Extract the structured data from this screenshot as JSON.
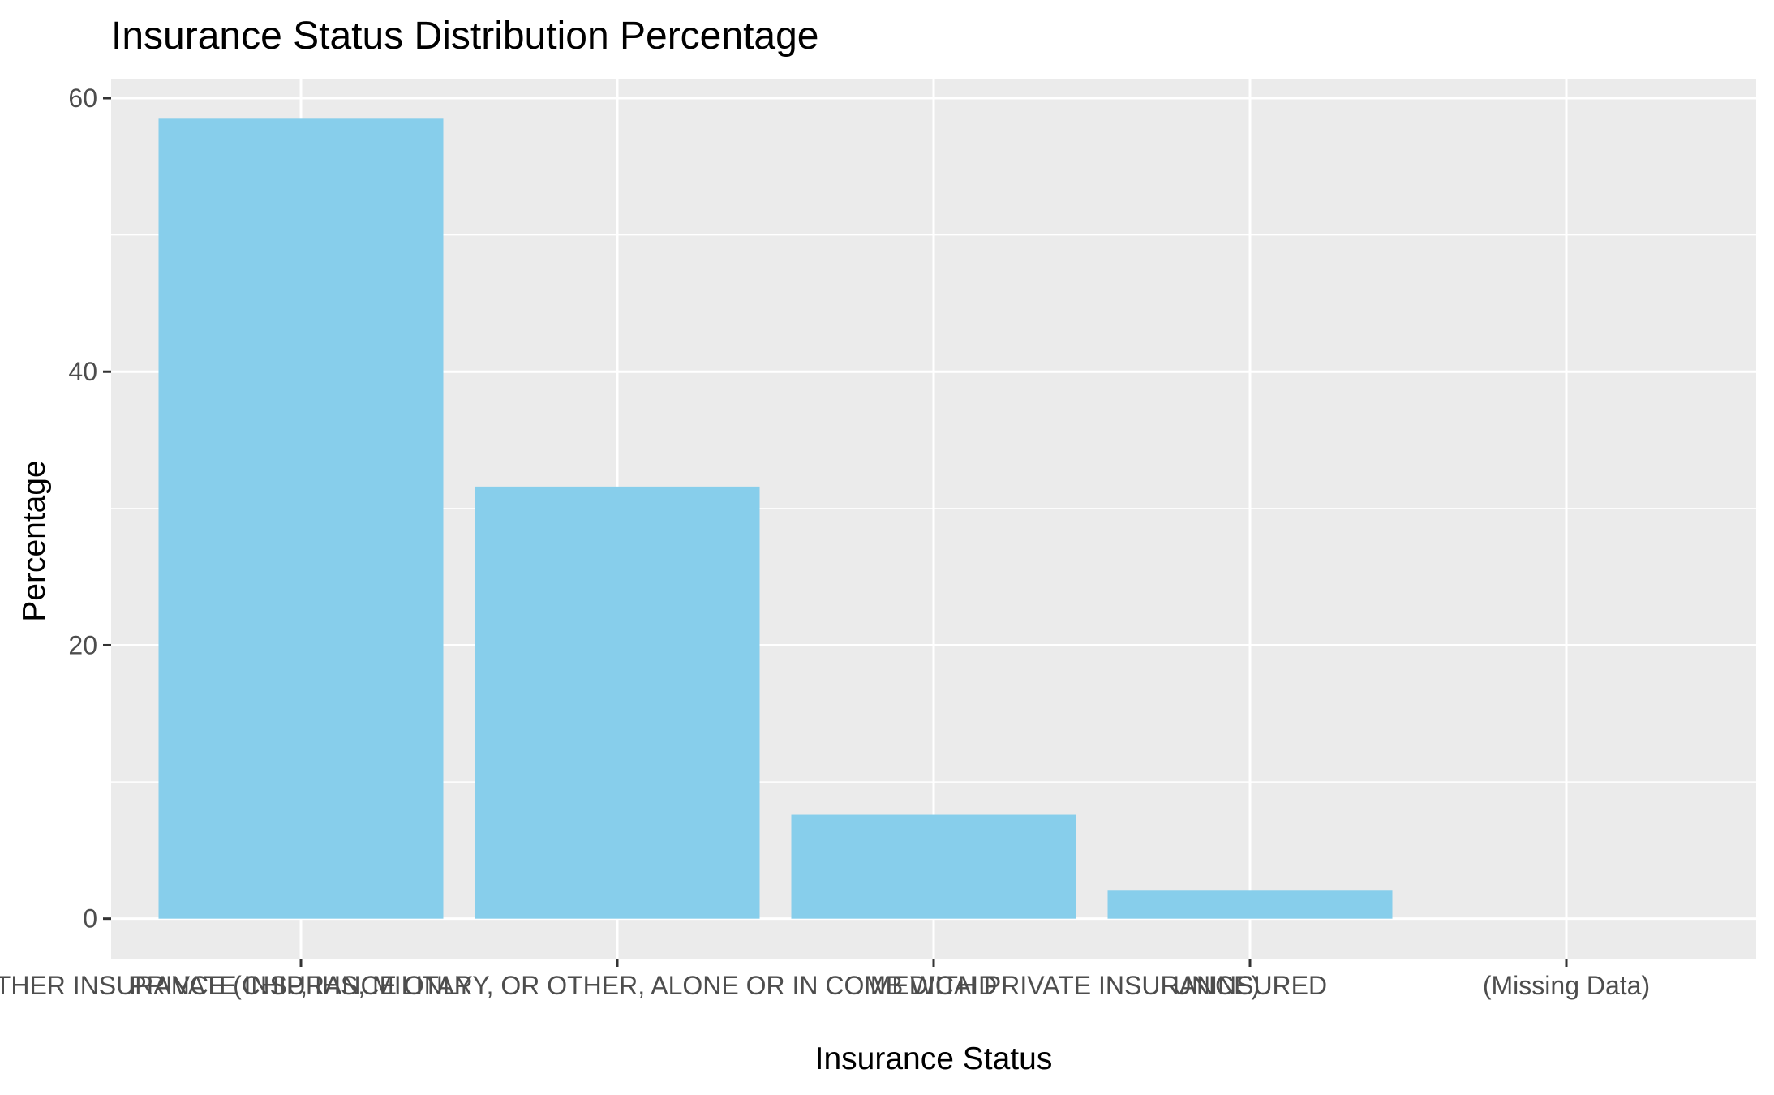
{
  "chart_data": {
    "type": "bar",
    "title": "Insurance Status Distribution Percentage",
    "xlabel": "Insurance Status",
    "ylabel": "Percentage",
    "categories": [
      "PRIVATE INSURANCE ONLY",
      "OTHER INSURANCE (CHIP, IHS, MILITARY, OR OTHER, ALONE OR IN COMB WITH PRIVATE INSURANCE)",
      "MEDICAID",
      "UNINSURED",
      "(Missing Data)"
    ],
    "values": [
      58.5,
      31.6,
      7.6,
      2.1,
      0.0
    ],
    "ylim": [
      -2.925,
      61.425
    ],
    "y_ticks": [
      0,
      20,
      40,
      60
    ],
    "y_tick_labels": [
      "0",
      "20",
      "40",
      "60"
    ],
    "grid": true,
    "legend": "none",
    "colors": {
      "bar": "#87CEEB",
      "panel_background": "#EBEBEB",
      "grid": "#FFFFFF"
    }
  }
}
